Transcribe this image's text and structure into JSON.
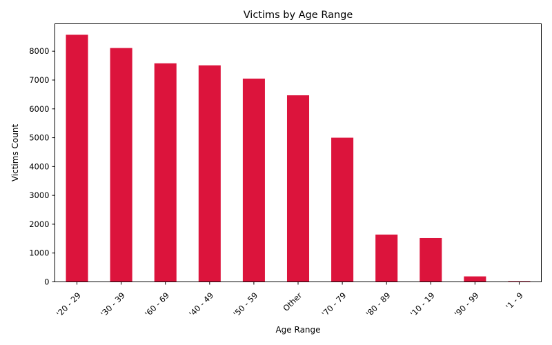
{
  "chart_data": {
    "type": "bar",
    "title": "Victims by Age Range",
    "xlabel": "Age Range",
    "ylabel": "Victims Count",
    "categories": [
      "'20 - 29",
      "'30 - 39",
      "'60 - 69",
      "'40 - 49",
      "'50 - 59",
      "Other",
      "'70 - 79",
      "'80 - 89",
      "'10 - 19",
      "'90 - 99",
      "'1 - 9"
    ],
    "values": [
      8570,
      8110,
      7580,
      7510,
      7050,
      6470,
      5000,
      1640,
      1520,
      190,
      25
    ],
    "ylim": [
      0,
      8950
    ],
    "yticks": [
      0,
      1000,
      2000,
      3000,
      4000,
      5000,
      6000,
      7000,
      8000
    ],
    "bar_color": "#DC143C",
    "grid": false,
    "legend": "none"
  }
}
